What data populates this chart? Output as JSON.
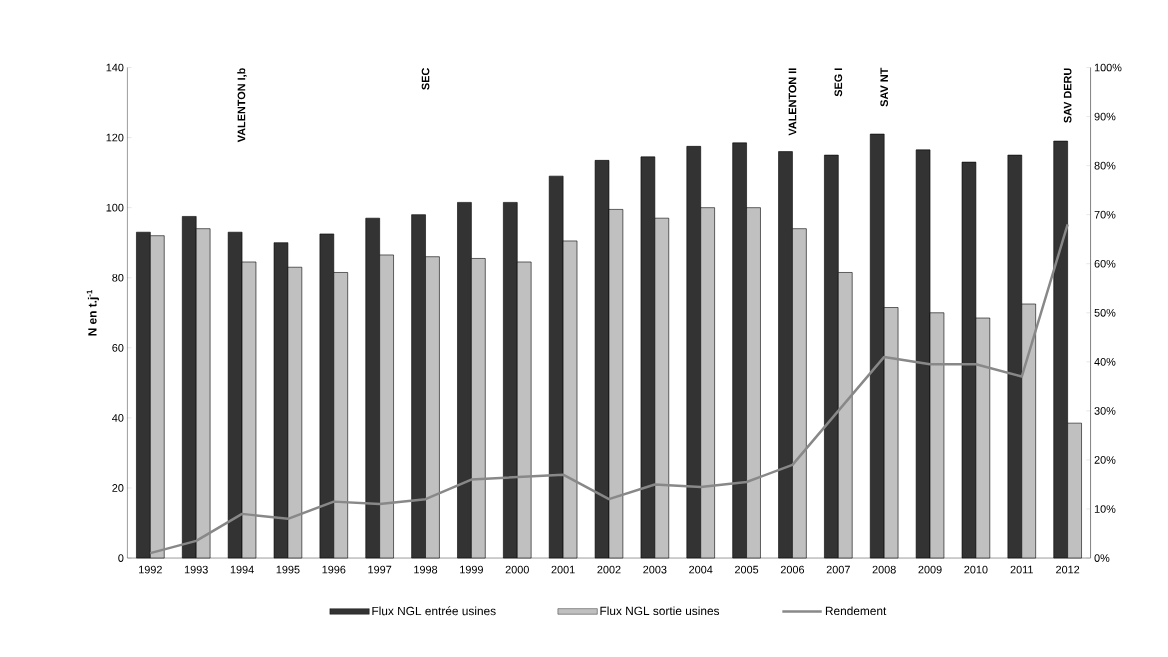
{
  "chart_data": {
    "type": "bar",
    "ylabel": "N en t.j$^{-1}$",
    "categories": [
      "1992",
      "1993",
      "1994",
      "1995",
      "1996",
      "1997",
      "1998",
      "1999",
      "2000",
      "2001",
      "2002",
      "2003",
      "2004",
      "2005",
      "2006",
      "2007",
      "2008",
      "2009",
      "2010",
      "2011",
      "2012"
    ],
    "series": [
      {
        "name": "Flux NGL entrée usines",
        "color": "#333333",
        "values": [
          93,
          97.5,
          93,
          90,
          92.5,
          97,
          98,
          101.5,
          101.5,
          109,
          113.5,
          114.5,
          117.5,
          118.5,
          116,
          115,
          121,
          116.5,
          113,
          115,
          119
        ]
      },
      {
        "name": "Flux NGL sortie usines",
        "color": "#c0c0c0",
        "values": [
          92,
          94,
          84.5,
          83,
          81.5,
          86.5,
          86,
          85.5,
          84.5,
          90.5,
          99.5,
          97,
          100,
          100,
          94,
          81.5,
          71.5,
          70,
          68.5,
          72.5,
          38.5
        ]
      },
      {
        "name": "Rendement",
        "type": "line",
        "axis": "y2",
        "color": "#888888",
        "values": [
          1,
          3.5,
          9,
          8,
          11.5,
          11,
          12,
          16,
          16.5,
          17,
          12,
          15,
          14.5,
          15.5,
          19,
          30,
          41,
          39.5,
          39.5,
          37,
          68
        ]
      }
    ],
    "ylim": [
      0,
      140
    ],
    "yticks": [
      0,
      20,
      40,
      60,
      80,
      100,
      120,
      140
    ],
    "y2lim": [
      0,
      100
    ],
    "y2ticks": [
      {
        "value": 0,
        "label": "0%"
      },
      {
        "value": 10,
        "label": "10%"
      },
      {
        "value": 20,
        "label": "20%"
      },
      {
        "value": 30,
        "label": "30%"
      },
      {
        "value": 40,
        "label": "40%"
      },
      {
        "value": 50,
        "label": "50%"
      },
      {
        "value": 60,
        "label": "60%"
      },
      {
        "value": 70,
        "label": "70%"
      },
      {
        "value": 80,
        "label": "80%"
      },
      {
        "value": 90,
        "label": "90%"
      },
      {
        "value": 100,
        "label": "100%"
      }
    ],
    "annotations": [
      "VALENTON I,b",
      "SEC",
      "VALENTON II",
      "SEG I",
      "SAV NT",
      "SAV DERU"
    ],
    "legend": "bottom",
    "grid": false,
    "marker": "none"
  }
}
